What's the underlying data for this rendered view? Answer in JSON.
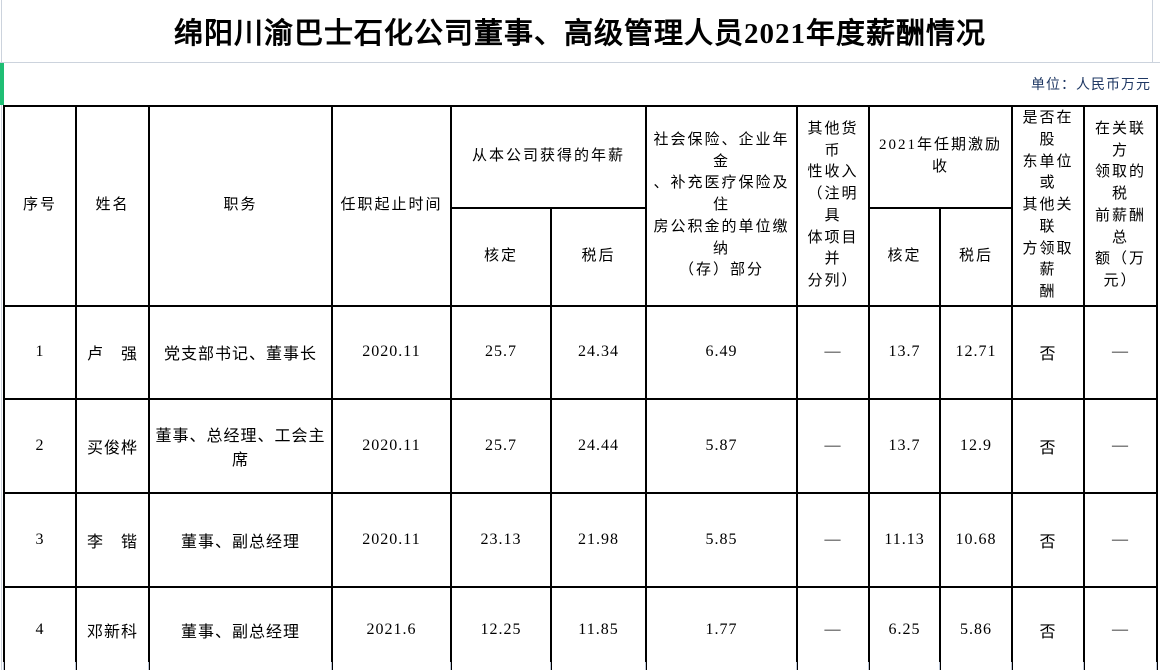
{
  "title": "绵阳川渝巴士石化公司董事、高级管理人员2021年度薪酬情况",
  "unit_note": "单位：人民币万元",
  "colors": {
    "accent_green_bar": "#1fbe74",
    "unit_note_text": "#1f3864",
    "table_border": "#000000",
    "gridline": "#ccd3dd"
  },
  "table": {
    "headers": {
      "serial": "序号",
      "name": "姓名",
      "position": "职务",
      "term": "任职起止时间",
      "company_salary_group": "从本公司获得的年薪",
      "approved": "核定",
      "after_tax": "税后",
      "social_insurance": "社会保险、企业年金\n、补充医疗保险及住\n房公积金的单位缴纳\n（存）部分",
      "other_monetary_income": "其他货币\n性收入\n（注明具\n体项目并\n分列）",
      "incentive_group": "2021年任期激励收",
      "related_party_flag": "是否在股\n东单位或\n其他关联\n方领取薪\n酬",
      "related_party_total": "在关联方\n领取的税\n前薪酬总\n额（万\n元）"
    },
    "rows": [
      {
        "no": "1",
        "name": "卢　强",
        "position": "党支部书记、董事长",
        "term": "2020.11",
        "salary_approved": "25.7",
        "salary_after_tax": "24.34",
        "social": "6.49",
        "other": "—",
        "incentive_approved": "13.7",
        "incentive_after_tax": "12.71",
        "related": "否",
        "related_total": "—"
      },
      {
        "no": "2",
        "name": "买俊桦",
        "position": "董事、总经理、工会主席",
        "term": "2020.11",
        "salary_approved": "25.7",
        "salary_after_tax": "24.44",
        "social": "5.87",
        "other": "—",
        "incentive_approved": "13.7",
        "incentive_after_tax": "12.9",
        "related": "否",
        "related_total": "—"
      },
      {
        "no": "3",
        "name": "李　锴",
        "position": "董事、副总经理",
        "term": "2020.11",
        "salary_approved": "23.13",
        "salary_after_tax": "21.98",
        "social": "5.85",
        "other": "—",
        "incentive_approved": "11.13",
        "incentive_after_tax": "10.68",
        "related": "否",
        "related_total": "—"
      },
      {
        "no": "4",
        "name": "邓新科",
        "position": "董事、副总经理",
        "term": "2021.6",
        "salary_approved": "12.25",
        "salary_after_tax": "11.85",
        "social": "1.77",
        "other": "—",
        "incentive_approved": "6.25",
        "incentive_after_tax": "5.86",
        "related": "否",
        "related_total": "—"
      }
    ]
  }
}
